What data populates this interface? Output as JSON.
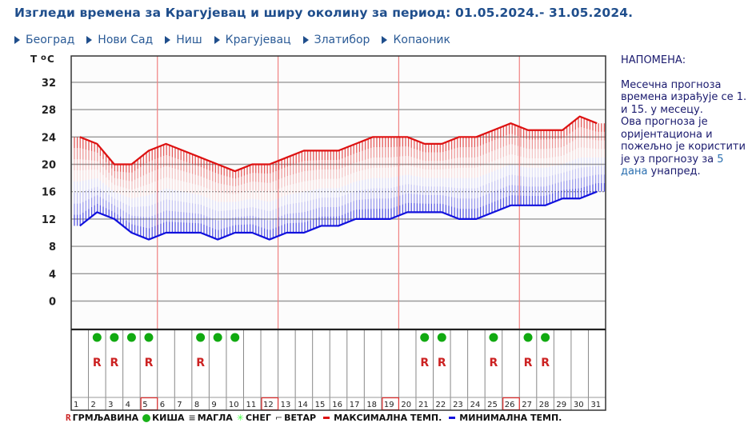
{
  "header": {
    "title": "Изгледи времена за Крагујевац и ширу околину за период: 01.05.2024.- 31.05.2024."
  },
  "nav": {
    "items": [
      {
        "label": "Београд"
      },
      {
        "label": "Нови Сад"
      },
      {
        "label": "Ниш"
      },
      {
        "label": "Крагујевац"
      },
      {
        "label": "Златибор"
      },
      {
        "label": "Копаоник"
      }
    ]
  },
  "note": {
    "title": "НАПОМЕНА:",
    "line1": "Месечна прогноза времена израђује се 1. и 15. у месецу.",
    "line2_pre": "Ова прогноза је оријентациона и пожељно је користити је уз прогнозу за ",
    "line2_link": "5 дана",
    "line2_post": " унапред."
  },
  "legend": {
    "thunder": "ГРМЉАВИНА",
    "rain": "КИША",
    "fog": "МАГЛА",
    "snow": "СНЕГ",
    "wind": "ВЕТАР",
    "max": "МАКСИМАЛНА ТЕМП.",
    "min": "МИНИМАЛНА ТЕМП."
  },
  "colors": {
    "max_line": "#dd1111",
    "min_line": "#1111dd",
    "rain_dot": "#11aa11",
    "thunder": "#cc2222",
    "week_line": "#f08080",
    "title": "#1f4e8c"
  },
  "chart_data": {
    "type": "line",
    "title": "Изгледи времена за Крагујевац и ширу околину за период: 01.05.2024.- 31.05.2024.",
    "xlabel": "",
    "ylabel": "T °C",
    "y_ticks": [
      0,
      4,
      8,
      12,
      16,
      20,
      24,
      28,
      32
    ],
    "ylim": [
      -4,
      36
    ],
    "grid": true,
    "legend_position": "bottom",
    "x": [
      1,
      2,
      3,
      4,
      5,
      6,
      7,
      8,
      9,
      10,
      11,
      12,
      13,
      14,
      15,
      16,
      17,
      18,
      19,
      20,
      21,
      22,
      23,
      24,
      25,
      26,
      27,
      28,
      29,
      30,
      31
    ],
    "series": [
      {
        "name": "МАКСИМАЛНА ТЕМП.",
        "color": "#dd1111",
        "values": [
          24,
          23,
          20,
          20,
          22,
          23,
          22,
          21,
          20,
          19,
          20,
          20,
          21,
          22,
          22,
          22,
          23,
          24,
          24,
          24,
          23,
          23,
          24,
          24,
          25,
          26,
          25,
          25,
          25,
          27,
          26
        ]
      },
      {
        "name": "МИНИМАЛНА ТЕМП.",
        "color": "#1111dd",
        "values": [
          11,
          13,
          12,
          10,
          9,
          10,
          10,
          10,
          9,
          10,
          10,
          9,
          10,
          10,
          11,
          11,
          12,
          12,
          12,
          13,
          13,
          13,
          12,
          12,
          13,
          14,
          14,
          14,
          15,
          15,
          16
        ]
      }
    ],
    "rain_days": [
      2,
      3,
      4,
      5,
      8,
      9,
      10,
      21,
      22,
      25,
      27,
      28
    ],
    "thunder_days": [
      2,
      3,
      5,
      8,
      21,
      22,
      25,
      27,
      28
    ],
    "highlighted_days": [
      5,
      12,
      19,
      26
    ]
  }
}
